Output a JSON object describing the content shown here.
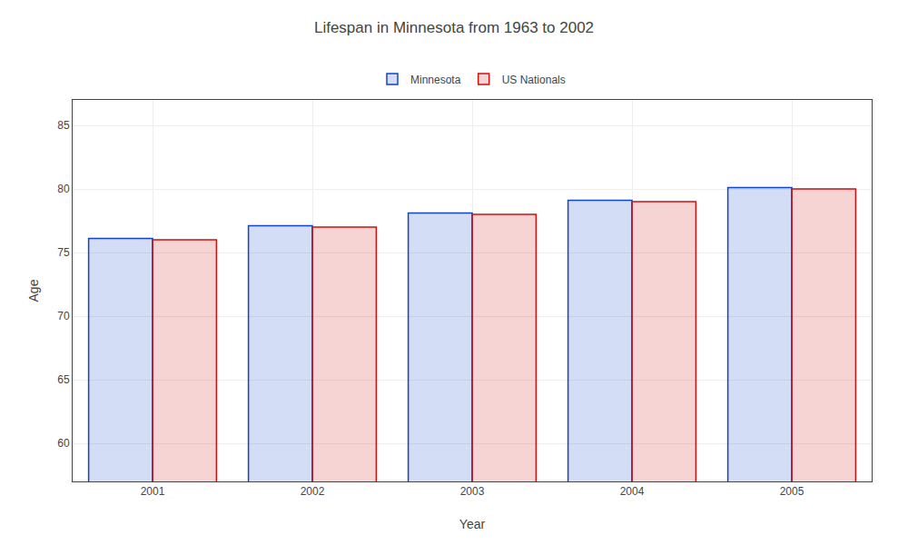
{
  "chart_data": {
    "type": "bar",
    "title": "Lifespan in Minnesota from 1963 to 2002",
    "x_label": "Year",
    "y_label": "Age",
    "categories": [
      "2001",
      "2002",
      "2003",
      "2004",
      "2005"
    ],
    "series": [
      {
        "name": "Minnesota",
        "color": "#1144cc",
        "values": [
          76.1,
          77.1,
          78.1,
          79.1,
          80.1
        ]
      },
      {
        "name": "US Nationals",
        "color": "#cc1111",
        "values": [
          76.0,
          77.0,
          78.0,
          79.0,
          80.0
        ]
      }
    ],
    "ylim": [
      57,
      87
    ],
    "yticks": [
      60,
      65,
      70,
      75,
      80,
      85
    ],
    "grid": true,
    "legend": "top"
  }
}
